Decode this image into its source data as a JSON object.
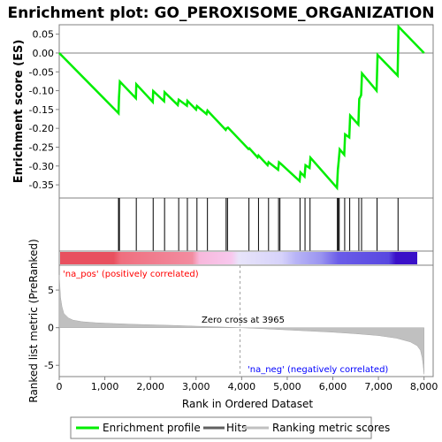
{
  "title": "Enrichment plot: GO_PEROXISOME_ORGANIZATION",
  "colors": {
    "profile": "#00ee00",
    "hits": "#000000",
    "axis": "#808080",
    "metric_fill": "#c0c0c0",
    "pos_label": "#ff0000",
    "neg_label": "#0000ff",
    "zero_line": "#808080"
  },
  "legend": {
    "items": [
      {
        "label": "Enrichment profile",
        "color": "#00ee00"
      },
      {
        "label": "Hits",
        "color": "#000000"
      },
      {
        "label": "Ranking metric scores",
        "color": "#c0c0c0"
      }
    ]
  },
  "annotations": {
    "pos_label": "'na_pos' (positively correlated)",
    "neg_label": "'na_neg' (negatively correlated)",
    "zero_cross": "Zero cross at 3965"
  },
  "chart_data": [
    {
      "type": "line",
      "name": "enrichment-profile",
      "ylabel": "Enrichment score (ES)",
      "xlim": [
        0,
        8200
      ],
      "ylim": [
        -0.385,
        0.075
      ],
      "yticks": [
        0.05,
        0.0,
        -0.05,
        -0.1,
        -0.15,
        -0.2,
        -0.25,
        -0.3,
        -0.35
      ],
      "ytick_labels": [
        "0.05",
        "0.00",
        "-0.05",
        "-0.10",
        "-0.15",
        "-0.20",
        "-0.25",
        "-0.30",
        "-0.35"
      ],
      "grid": false,
      "x": [
        0,
        1300,
        1310,
        1330,
        1680,
        1690,
        2050,
        2060,
        2300,
        2310,
        2600,
        2620,
        2800,
        2810,
        3000,
        3020,
        3230,
        3250,
        3650,
        3670,
        3700,
        4150,
        4170,
        4350,
        4370,
        4570,
        4590,
        4800,
        4820,
        4850,
        5270,
        5290,
        5380,
        5400,
        5490,
        5510,
        6090,
        6110,
        6130,
        6150,
        6250,
        6270,
        6360,
        6380,
        6560,
        6580,
        6620,
        6640,
        6960,
        6980,
        7420,
        7440,
        8000
      ],
      "y": [
        0.0,
        -0.16,
        -0.118,
        -0.076,
        -0.12,
        -0.083,
        -0.13,
        -0.101,
        -0.128,
        -0.104,
        -0.138,
        -0.124,
        -0.14,
        -0.127,
        -0.15,
        -0.141,
        -0.162,
        -0.153,
        -0.204,
        -0.2,
        -0.198,
        -0.255,
        -0.253,
        -0.277,
        -0.272,
        -0.298,
        -0.29,
        -0.31,
        -0.29,
        -0.293,
        -0.34,
        -0.317,
        -0.328,
        -0.298,
        -0.305,
        -0.278,
        -0.358,
        -0.31,
        -0.286,
        -0.256,
        -0.27,
        -0.216,
        -0.224,
        -0.166,
        -0.19,
        -0.122,
        -0.112,
        -0.054,
        -0.1,
        -0.005,
        -0.06,
        0.07,
        0.0
      ]
    },
    {
      "type": "scatter",
      "name": "hits",
      "x": [
        1300,
        1320,
        1690,
        2060,
        2310,
        2620,
        2810,
        3020,
        3250,
        3660,
        3690,
        4160,
        4370,
        4590,
        4810,
        4840,
        5280,
        5390,
        5500,
        6100,
        6120,
        6140,
        6260,
        6370,
        6570,
        6630,
        6970,
        7430
      ]
    },
    {
      "type": "area",
      "name": "ranked-list-metric",
      "xlabel": "Rank in Ordered Dataset",
      "ylabel": "Ranked list metric (PreRanked)",
      "xlim": [
        0,
        8200
      ],
      "ylim": [
        -6.5,
        8.3
      ],
      "xticks": [
        0,
        1000,
        2000,
        3000,
        4000,
        5000,
        6000,
        7000,
        8000
      ],
      "xtick_labels": [
        "0",
        "1,000",
        "2,000",
        "3,000",
        "4,000",
        "5,000",
        "6,000",
        "7,000",
        "8,000"
      ],
      "yticks": [
        5,
        0,
        -5
      ],
      "ytick_labels": [
        "5",
        "0",
        "-5"
      ],
      "x": [
        0,
        10,
        30,
        60,
        100,
        200,
        300,
        500,
        800,
        1200,
        1600,
        2000,
        2500,
        3000,
        3500,
        3965,
        4500,
        5000,
        5500,
        6000,
        6500,
        7000,
        7400,
        7700,
        7850,
        7920,
        7960,
        7980,
        8000
      ],
      "y": [
        7.0,
        6.0,
        4.0,
        2.8,
        1.9,
        1.3,
        1.0,
        0.8,
        0.65,
        0.55,
        0.45,
        0.38,
        0.3,
        0.2,
        0.1,
        0.0,
        -0.15,
        -0.3,
        -0.45,
        -0.6,
        -0.8,
        -1.05,
        -1.4,
        -1.9,
        -2.4,
        -3.0,
        -4.0,
        -5.0,
        -6.2
      ]
    }
  ]
}
